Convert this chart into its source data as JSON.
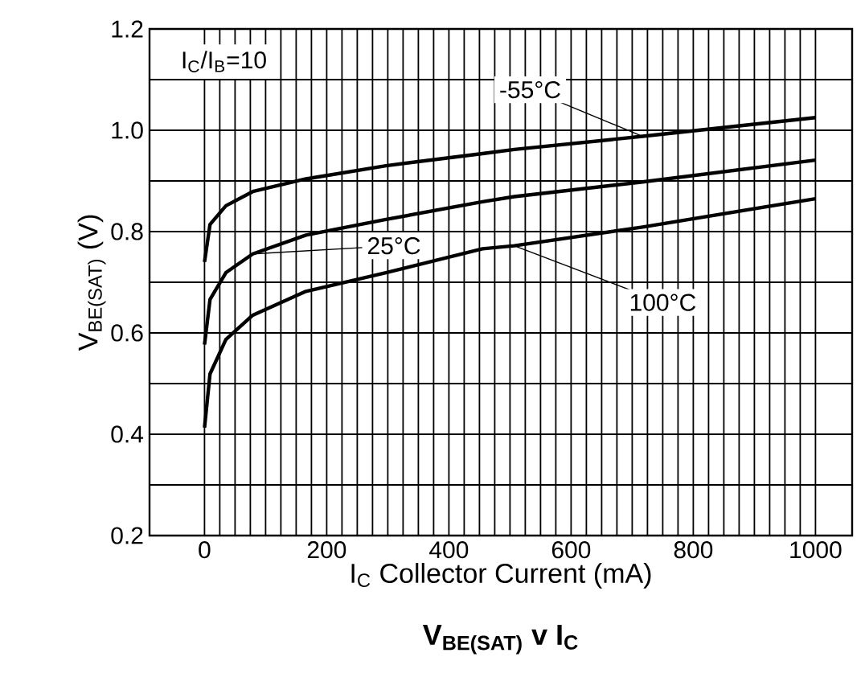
{
  "chart_data": {
    "type": "line",
    "title": "V$_{BE(SAT)}$ v I$_{C}$",
    "xlabel": "I$_{C}$   Collector Current (mA)",
    "ylabel": "V$_{BE(SAT)}$   (V)",
    "annotations": [
      "I$_{C}$/I$_{B}$=10"
    ],
    "x": [
      0,
      9,
      35,
      79,
      166,
      297,
      455,
      507,
      717,
      1000
    ],
    "series": [
      {
        "name": "-55°C",
        "color": "#000000",
        "values": [
          0.74,
          0.814,
          0.851,
          0.879,
          0.904,
          0.93,
          0.954,
          0.962,
          0.988,
          1.025
        ]
      },
      {
        "name": "25°C",
        "color": "#000000",
        "values": [
          0.577,
          0.666,
          0.719,
          0.756,
          0.793,
          0.824,
          0.859,
          0.869,
          0.898,
          0.941
        ]
      },
      {
        "name": "100°C",
        "color": "#000000",
        "values": [
          0.413,
          0.519,
          0.587,
          0.635,
          0.682,
          0.719,
          0.766,
          0.772,
          0.809,
          0.865
        ]
      }
    ],
    "xlim": [
      -90,
      1060
    ],
    "ylim": [
      0.2,
      1.2
    ],
    "xticks": [
      0,
      200,
      400,
      600,
      800,
      1000
    ],
    "yticks": [
      0.2,
      0.4,
      0.6,
      0.8,
      {
        "value": 1,
        "label": "1.0"
      },
      1.2
    ],
    "grid": true,
    "legend": false,
    "marker": "none",
    "line_style": "solid"
  }
}
